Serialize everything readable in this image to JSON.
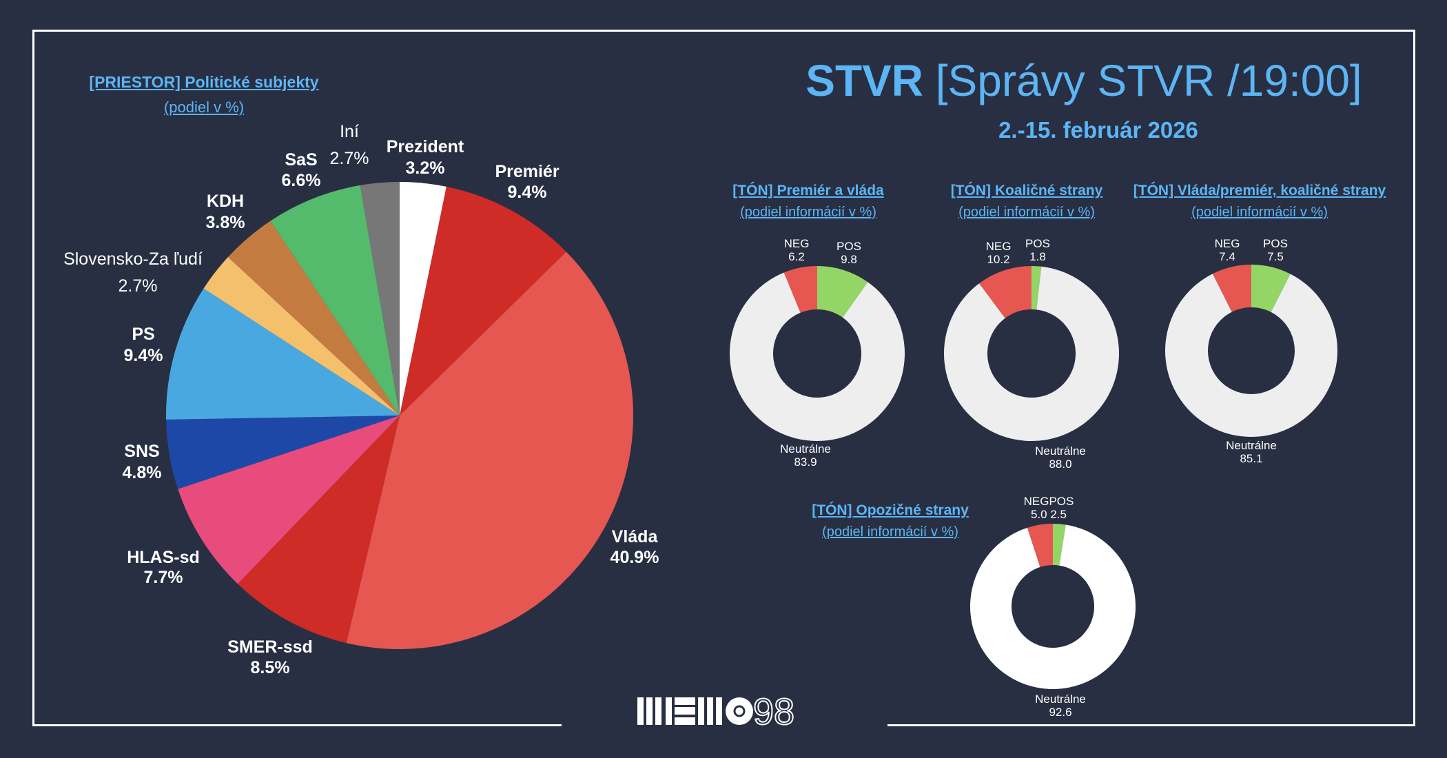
{
  "header": {
    "title_bold": "STVR",
    "title_rest": "[Správy STVR /19:00]",
    "date": "2.-15. február 2026"
  },
  "colors": {
    "background": "#282f42",
    "accent": "#5cb5f5",
    "pos": "#93d665",
    "neg": "#e55750",
    "neutral": "#eeeeee"
  },
  "chart_data": [
    {
      "type": "pie",
      "title": "[PRIESTOR] Politické subjekty",
      "subtitle": "(podiel v %)",
      "slices": [
        {
          "label": "Prezident",
          "value": 3.2,
          "display": "3.2%",
          "color": "#ffffff"
        },
        {
          "label": "Premiér",
          "value": 9.4,
          "display": "9.4%",
          "color": "#cf2b27"
        },
        {
          "label": "Vláda",
          "value": 40.9,
          "display": "40.9%",
          "color": "#e55750"
        },
        {
          "label": "SMER-ssd",
          "value": 8.5,
          "display": "8.5%",
          "color": "#cf2b27"
        },
        {
          "label": "HLAS-sd",
          "value": 7.7,
          "display": "7.7%",
          "color": "#e84c7c"
        },
        {
          "label": "SNS",
          "value": 4.8,
          "display": "4.8%",
          "color": "#1e48a8"
        },
        {
          "label": "PS",
          "value": 9.4,
          "display": "9.4%",
          "color": "#4aa8e0"
        },
        {
          "label": "Slovensko-Za ľudí",
          "value": 2.7,
          "display": "2.7%",
          "color": "#f4c06c"
        },
        {
          "label": "KDH",
          "value": 3.8,
          "display": "3.8%",
          "color": "#c47b40"
        },
        {
          "label": "SaS",
          "value": 6.6,
          "display": "6.6%",
          "color": "#55bb6c"
        },
        {
          "label": "Iní",
          "value": 2.7,
          "display": "2.7%",
          "color": "#777777"
        }
      ]
    },
    {
      "type": "pie",
      "title": "[TÓN] Premiér a vláda",
      "subtitle": "(podiel informácií v %)",
      "slices": [
        {
          "label": "POS",
          "value": 9.8,
          "display": "9.8"
        },
        {
          "label": "Neutrálne",
          "value": 83.9,
          "display": "83.9"
        },
        {
          "label": "NEG",
          "value": 6.2,
          "display": "6.2"
        }
      ]
    },
    {
      "type": "pie",
      "title": "[TÓN] Koaličné strany",
      "subtitle": "(podiel informácií v %)",
      "slices": [
        {
          "label": "POS",
          "value": 1.8,
          "display": "1.8"
        },
        {
          "label": "Neutrálne",
          "value": 88.0,
          "display": "88.0"
        },
        {
          "label": "NEG",
          "value": 10.2,
          "display": "10.2"
        }
      ]
    },
    {
      "type": "pie",
      "title": "[TÓN] Vláda/premiér, koaličné strany",
      "subtitle": "(podiel informácií v %)",
      "slices": [
        {
          "label": "POS",
          "value": 7.5,
          "display": "7.5"
        },
        {
          "label": "Neutrálne",
          "value": 85.1,
          "display": "85.1"
        },
        {
          "label": "NEG",
          "value": 7.4,
          "display": "7.4"
        }
      ]
    },
    {
      "type": "pie",
      "title": "[TÓN] Opozičné strany",
      "subtitle": "(podiel informácií v %)",
      "slices": [
        {
          "label": "POS",
          "value": 2.5,
          "display": "2.5"
        },
        {
          "label": "Neutrálne",
          "value": 92.6,
          "display": "92.6"
        },
        {
          "label": "NEG",
          "value": 5.0,
          "display": "5.0"
        }
      ],
      "combined_label": "NEGPOS",
      "combined_values": "5.0  2.5"
    }
  ],
  "logo": {
    "text": "MEMO 98"
  }
}
